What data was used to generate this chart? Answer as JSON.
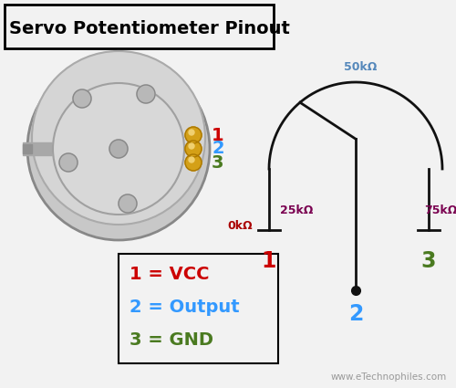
{
  "title": "Servo Potentiometer Pinout",
  "background_color": "#f2f2f2",
  "pin_colors": [
    "#cc0000",
    "#3399ff",
    "#4a7a20"
  ],
  "resistance_labels": [
    "0kΩ",
    "25kΩ",
    "50kΩ",
    "75kΩ"
  ],
  "res_color_0k": "#aa0000",
  "res_color_25k": "#7a0050",
  "res_color_50k": "#5588bb",
  "res_color_75k": "#7a0050",
  "diagram_color": "#111111",
  "legend_texts": [
    "1 = VCC",
    "2 = Output",
    "3 = GND"
  ],
  "legend_colors": [
    "#cc0000",
    "#3399ff",
    "#4a7a20"
  ],
  "watermark": "www.eTechnophiles.com"
}
